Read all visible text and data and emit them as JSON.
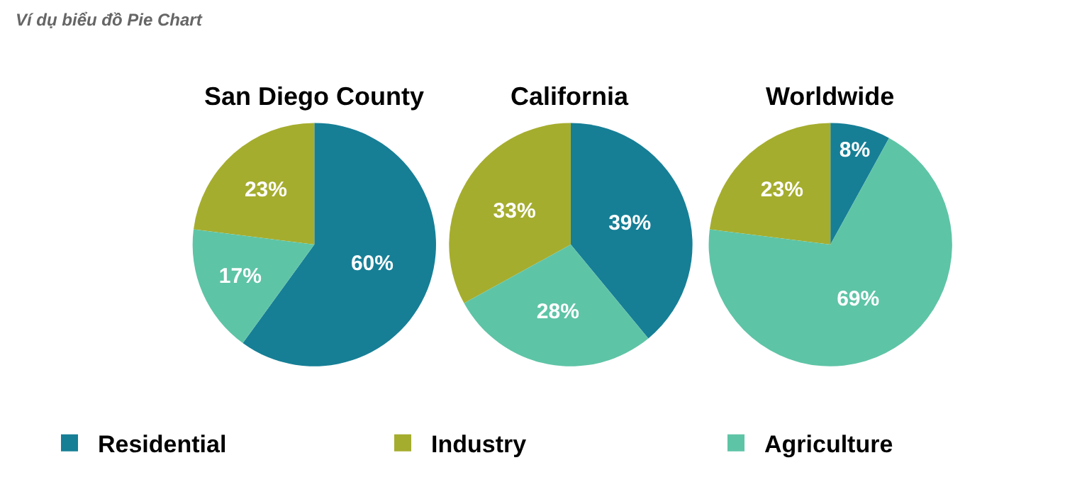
{
  "chart_data": [
    {
      "type": "pie",
      "title": "San Diego County",
      "annotations": [
        "Ví dụ biểu đồ Pie Chart"
      ],
      "categories": [
        "Residential",
        "Industry",
        "Agriculture"
      ],
      "values": [
        60,
        23,
        17
      ],
      "value_labels": [
        "60%",
        "23%",
        "17%"
      ],
      "colors": [
        "#167f96",
        "#a5ad2e",
        "#5ec4a6"
      ],
      "legend": "bottom"
    },
    {
      "type": "pie",
      "title": "California",
      "categories": [
        null,
        null,
        null
      ],
      "values": [
        39,
        33,
        28
      ],
      "value_labels": [
        "39%",
        "33%",
        "28%"
      ],
      "colors": [
        "#167f96",
        "#a5ad2e",
        "#5ec4a6"
      ]
    },
    {
      "type": "pie",
      "title": "Worldwide",
      "categories": [
        null,
        null,
        null
      ],
      "values": [
        8,
        23,
        69
      ],
      "value_labels": [
        "8%",
        "23%",
        "69%"
      ],
      "colors": [
        "#167f96",
        "#a5ad2e",
        "#5ec4a6"
      ]
    }
  ]
}
